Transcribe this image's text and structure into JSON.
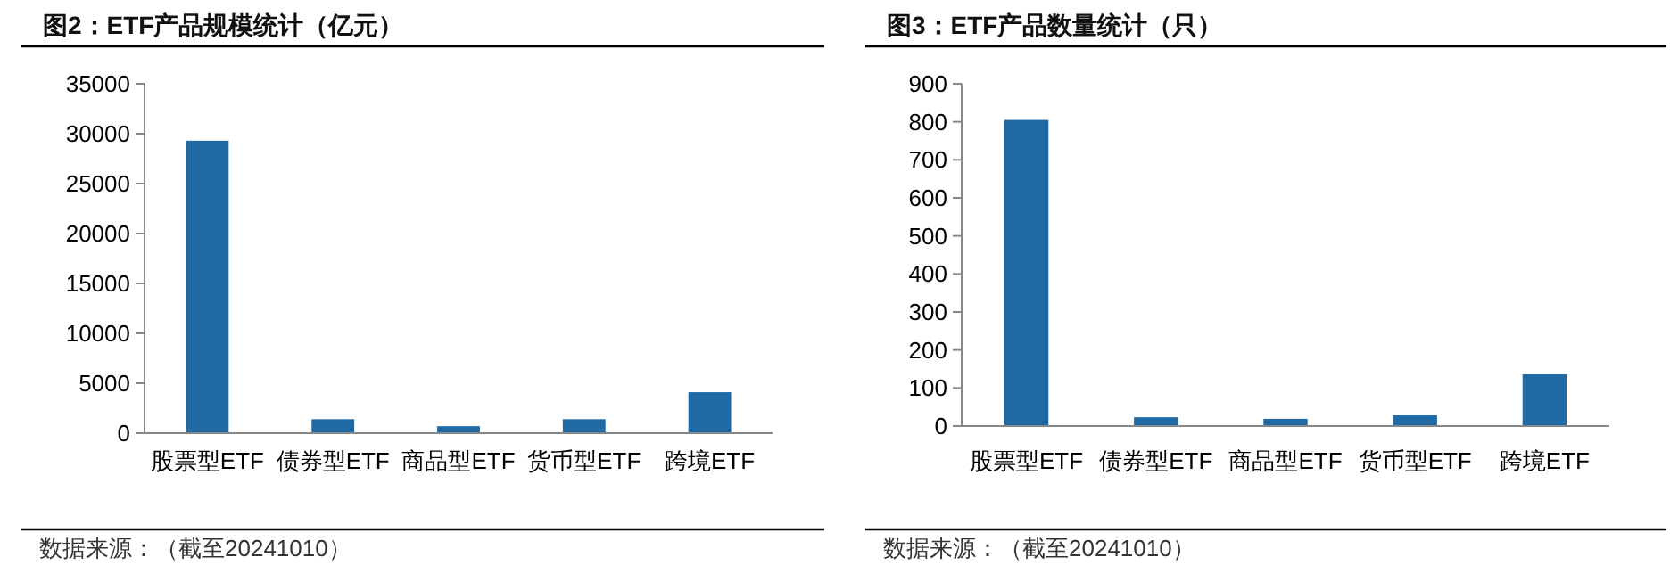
{
  "chart_data": [
    {
      "type": "bar",
      "title": "图2：ETF产品规模统计（亿元）",
      "categories": [
        "股票型ETF",
        "债券型ETF",
        "商品型ETF",
        "货币型ETF",
        "跨境ETF"
      ],
      "values": [
        29300,
        1400,
        700,
        1400,
        4100
      ],
      "color": "#1f6aa5",
      "ylim": [
        0,
        35000
      ],
      "yticks": [
        0,
        5000,
        10000,
        15000,
        20000,
        25000,
        30000,
        35000
      ],
      "annotations": [
        "数据来源：（截至20241010）"
      ]
    },
    {
      "type": "bar",
      "title": "图3：ETF产品数量统计（只）",
      "categories": [
        "股票型ETF",
        "债券型ETF",
        "商品型ETF",
        "货币型ETF",
        "跨境ETF"
      ],
      "values": [
        805,
        23,
        19,
        28,
        136
      ],
      "color": "#1f6aa5",
      "ylim": [
        0,
        900
      ],
      "yticks": [
        0,
        100,
        200,
        300,
        400,
        500,
        600,
        700,
        800,
        900
      ],
      "annotations": [
        "数据来源：（截至20241010）"
      ]
    }
  ]
}
